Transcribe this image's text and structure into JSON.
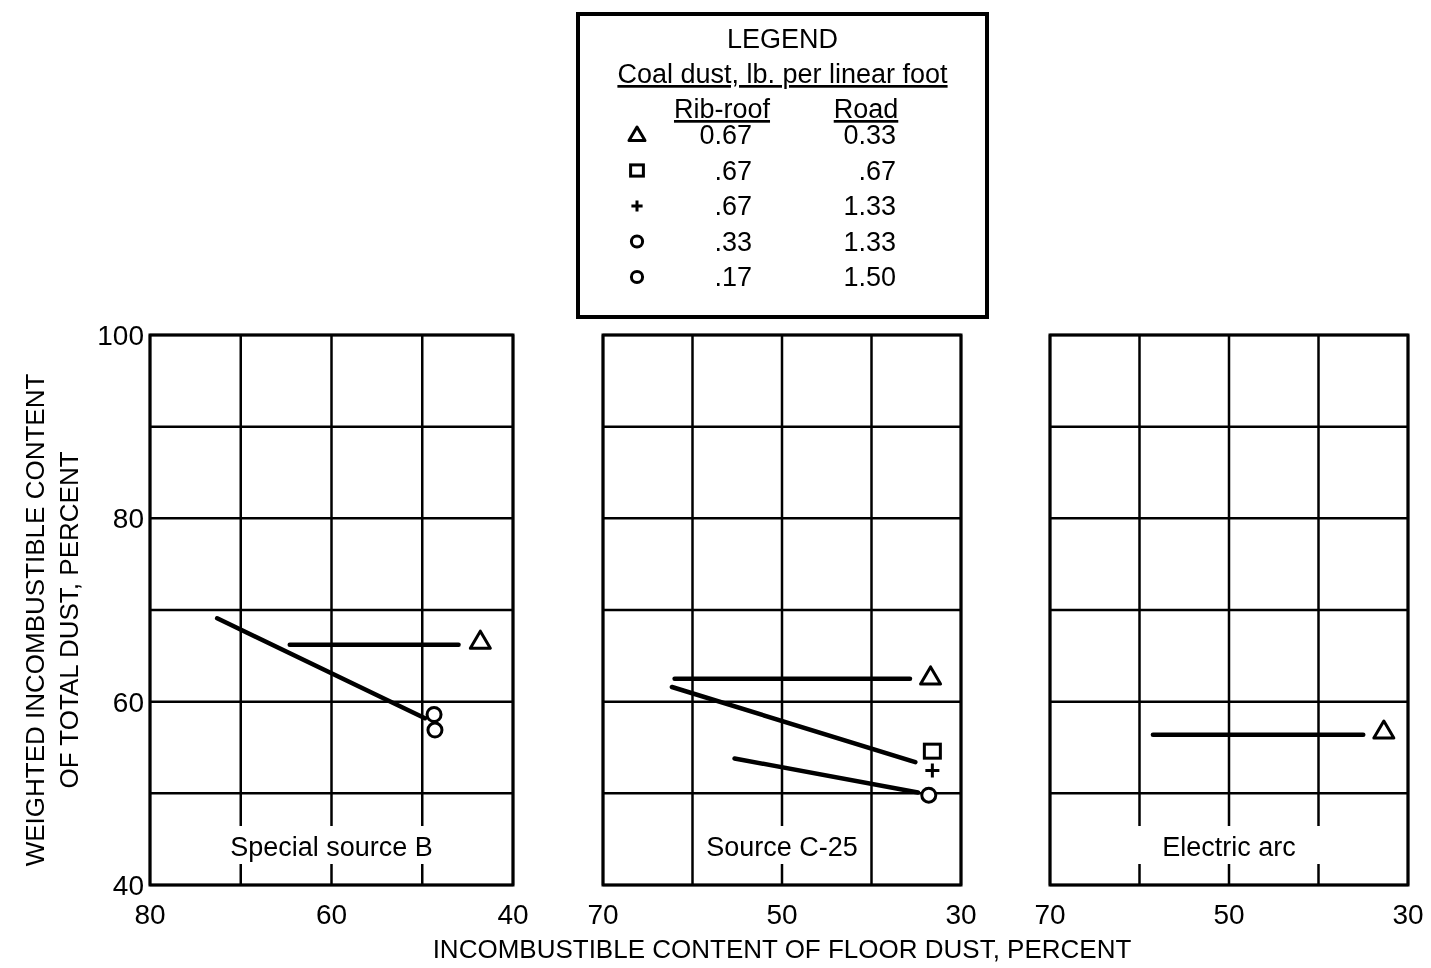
{
  "chart_data": [
    {
      "type": "other",
      "title": "LEGEND",
      "subtitle": "Coal dust, lb. per linear foot",
      "categories": [
        "Rib-roof",
        "Road"
      ],
      "series": [
        {
          "marker": "triangle",
          "values": [
            0.67,
            0.33
          ],
          "value_labels": [
            "0.67",
            "0.33"
          ]
        },
        {
          "marker": "square",
          "values": [
            0.67,
            0.67
          ],
          "value_labels": [
            ".67",
            ".67"
          ]
        },
        {
          "marker": "cross",
          "values": [
            0.67,
            1.33
          ],
          "value_labels": [
            ".67",
            "1.33"
          ]
        },
        {
          "marker": "circle",
          "values": [
            0.33,
            1.33
          ],
          "value_labels": [
            ".33",
            "1.33"
          ]
        },
        {
          "marker": "circle",
          "values": [
            0.17,
            1.5
          ],
          "value_labels": [
            ".17",
            "1.50"
          ]
        }
      ]
    },
    {
      "type": "scatter",
      "ylabel": "WEIGHTED INCOMBUSTIBLE CONTENT\nOF TOTAL DUST, PERCENT",
      "xlim": [
        80,
        40
      ],
      "xticks": [
        80,
        {
          "value": 70,
          "label": null
        },
        60,
        {
          "value": 50,
          "label": null
        },
        40
      ],
      "ylim": [
        40,
        100
      ],
      "yticks": [
        40,
        {
          "value": 50,
          "label": null
        },
        60,
        {
          "value": 70,
          "label": null
        },
        80,
        {
          "value": 90,
          "label": null
        },
        100
      ],
      "grid": true,
      "annotations": [
        "Special source B"
      ],
      "series": [
        {
          "type": "line",
          "marker": "none",
          "color": "#000000",
          "x": [
            64.6,
            46
          ],
          "values": [
            66.2,
            66.2
          ]
        },
        {
          "type": "line",
          "marker": "none",
          "color": "#000000",
          "x": [
            72.6,
            49.7
          ],
          "values": [
            69.1,
            58.2
          ]
        },
        {
          "marker": "triangle",
          "color": "#000000",
          "x": [
            43.6
          ],
          "values": [
            66.6
          ]
        },
        {
          "marker": "circle",
          "color": "#000000",
          "x": [
            48.7
          ],
          "values": [
            58.6
          ]
        },
        {
          "marker": "circle",
          "color": "#000000",
          "x": [
            48.6
          ],
          "values": [
            56.9
          ]
        }
      ]
    },
    {
      "type": "scatter",
      "xlabel": "INCOMBUSTIBLE CONTENT OF FLOOR DUST, PERCENT",
      "xlim": [
        70,
        30
      ],
      "xticks": [
        70,
        {
          "value": 60,
          "label": null
        },
        50,
        {
          "value": 40,
          "label": null
        },
        30
      ],
      "ylim": [
        40,
        100
      ],
      "yticks": [
        40,
        50,
        60,
        70,
        80,
        90,
        100
      ],
      "tick_labels": "x",
      "grid": true,
      "annotations": [
        "Source C-25"
      ],
      "series": [
        {
          "type": "line",
          "marker": "none",
          "color": "#000000",
          "x": [
            62,
            35.7
          ],
          "values": [
            62.5,
            62.5
          ]
        },
        {
          "type": "line",
          "marker": "none",
          "color": "#000000",
          "x": [
            62.3,
            35.1
          ],
          "values": [
            61.6,
            53.4
          ]
        },
        {
          "type": "line",
          "marker": "none",
          "color": "#000000",
          "x": [
            55.3,
            34.8
          ],
          "values": [
            53.8,
            50.1
          ]
        },
        {
          "marker": "triangle",
          "color": "#000000",
          "x": [
            33.4
          ],
          "values": [
            62.7
          ]
        },
        {
          "marker": "square",
          "color": "#000000",
          "x": [
            33.2
          ],
          "values": [
            54.6
          ]
        },
        {
          "marker": "cross",
          "color": "#000000",
          "x": [
            33.2
          ],
          "values": [
            52.5
          ]
        },
        {
          "marker": "circle",
          "color": "#000000",
          "x": [
            33.6
          ],
          "values": [
            49.8
          ]
        }
      ]
    },
    {
      "type": "scatter",
      "xlim": [
        70,
        30
      ],
      "xticks": [
        70,
        {
          "value": 60,
          "label": null
        },
        50,
        {
          "value": 40,
          "label": null
        },
        30
      ],
      "ylim": [
        40,
        100
      ],
      "yticks": [
        40,
        50,
        60,
        70,
        80,
        90,
        100
      ],
      "tick_labels": "x",
      "grid": true,
      "annotations": [
        "Electric arc"
      ],
      "series": [
        {
          "type": "line",
          "marker": "none",
          "color": "#000000",
          "x": [
            58.5,
            35
          ],
          "values": [
            56.4,
            56.4
          ]
        },
        {
          "marker": "triangle",
          "color": "#000000",
          "x": [
            32.7
          ],
          "values": [
            56.8
          ]
        }
      ]
    }
  ]
}
